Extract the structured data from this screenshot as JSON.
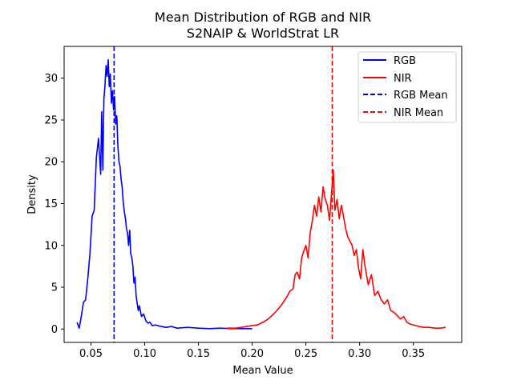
{
  "chart_data": {
    "type": "line",
    "title": "Mean Distribution of RGB and NIR",
    "subtitle": "S2NAIP & WorldStrat LR",
    "xlabel": "Mean Value",
    "ylabel": "Density",
    "xlim": [
      0.025,
      0.395
    ],
    "ylim": [
      -1.6,
      33.8
    ],
    "xticks": [
      0.05,
      0.1,
      0.15,
      0.2,
      0.25,
      0.3,
      0.35
    ],
    "xtick_labels": [
      "0.05",
      "0.10",
      "0.15",
      "0.20",
      "0.25",
      "0.30",
      "0.35"
    ],
    "yticks": [
      0,
      5,
      10,
      15,
      20,
      25,
      30
    ],
    "ytick_labels": [
      "0",
      "5",
      "10",
      "15",
      "20",
      "25",
      "30"
    ],
    "grid": false,
    "legend_position": "top-right",
    "series": [
      {
        "name": "RGB",
        "color": "#0000ff",
        "style": "solid",
        "x": [
          0.037,
          0.039,
          0.041,
          0.043,
          0.045,
          0.047,
          0.049,
          0.051,
          0.053,
          0.055,
          0.057,
          0.059,
          0.06,
          0.061,
          0.062,
          0.063,
          0.064,
          0.065,
          0.066,
          0.067,
          0.068,
          0.069,
          0.07,
          0.071,
          0.072,
          0.073,
          0.074,
          0.075,
          0.076,
          0.077,
          0.078,
          0.079,
          0.08,
          0.081,
          0.082,
          0.083,
          0.084,
          0.085,
          0.086,
          0.087,
          0.088,
          0.089,
          0.09,
          0.091,
          0.092,
          0.093,
          0.094,
          0.095,
          0.097,
          0.099,
          0.101,
          0.103,
          0.105,
          0.107,
          0.11,
          0.115,
          0.12,
          0.125,
          0.13,
          0.14,
          0.15,
          0.16,
          0.17,
          0.18,
          0.19,
          0.2
        ],
        "y": [
          0.8,
          0.1,
          1.5,
          3.2,
          3.5,
          6.0,
          9.0,
          13.5,
          14.2,
          20.5,
          22.8,
          18.5,
          26.0,
          19.0,
          27.5,
          29.0,
          31.5,
          30.2,
          32.2,
          29.0,
          30.5,
          27.0,
          28.5,
          26.2,
          27.8,
          24.5,
          25.5,
          22.0,
          20.0,
          19.5,
          18.0,
          17.0,
          15.2,
          14.0,
          13.3,
          12.0,
          11.5,
          10.0,
          11.8,
          9.0,
          8.5,
          7.5,
          5.5,
          6.2,
          4.0,
          3.0,
          2.2,
          2.8,
          1.5,
          1.8,
          1.0,
          0.7,
          0.8,
          0.4,
          0.5,
          0.3,
          0.2,
          0.3,
          0.1,
          0.2,
          0.1,
          0.05,
          0.1,
          0.05,
          0.05,
          0.05
        ]
      },
      {
        "name": "NIR",
        "color": "#ff0000",
        "style": "solid",
        "x": [
          0.176,
          0.185,
          0.195,
          0.205,
          0.21,
          0.215,
          0.22,
          0.225,
          0.228,
          0.232,
          0.235,
          0.238,
          0.24,
          0.242,
          0.244,
          0.246,
          0.248,
          0.25,
          0.252,
          0.254,
          0.256,
          0.258,
          0.26,
          0.262,
          0.264,
          0.266,
          0.268,
          0.27,
          0.272,
          0.274,
          0.2755,
          0.277,
          0.279,
          0.281,
          0.283,
          0.285,
          0.287,
          0.289,
          0.291,
          0.293,
          0.295,
          0.297,
          0.299,
          0.301,
          0.303,
          0.305,
          0.308,
          0.311,
          0.314,
          0.317,
          0.32,
          0.323,
          0.326,
          0.329,
          0.332,
          0.335,
          0.338,
          0.341,
          0.344,
          0.347,
          0.35,
          0.355,
          0.36,
          0.365,
          0.37,
          0.375,
          0.38
        ],
        "y": [
          0.1,
          0.1,
          0.3,
          0.5,
          0.8,
          1.2,
          1.8,
          2.5,
          3.0,
          3.8,
          4.5,
          4.8,
          6.5,
          6.8,
          6.0,
          8.5,
          9.3,
          10.0,
          8.5,
          11.5,
          13.0,
          14.8,
          13.5,
          15.8,
          14.0,
          17.0,
          15.5,
          14.8,
          13.0,
          16.5,
          19.0,
          14.2,
          15.5,
          13.2,
          14.8,
          13.5,
          12.0,
          11.0,
          10.5,
          10.0,
          8.8,
          9.5,
          7.3,
          6.0,
          9.5,
          7.5,
          5.3,
          6.5,
          4.0,
          4.5,
          3.5,
          3.0,
          3.5,
          2.2,
          2.0,
          1.6,
          1.2,
          1.5,
          0.8,
          0.6,
          0.5,
          0.3,
          0.2,
          0.2,
          0.1,
          0.1,
          0.2
        ]
      }
    ],
    "mean_lines": [
      {
        "name": "RGB Mean",
        "x": 0.0715,
        "color": "#0000ff",
        "style": "dashed"
      },
      {
        "name": "NIR Mean",
        "x": 0.2745,
        "color": "#ff0000",
        "style": "dashed"
      }
    ]
  }
}
